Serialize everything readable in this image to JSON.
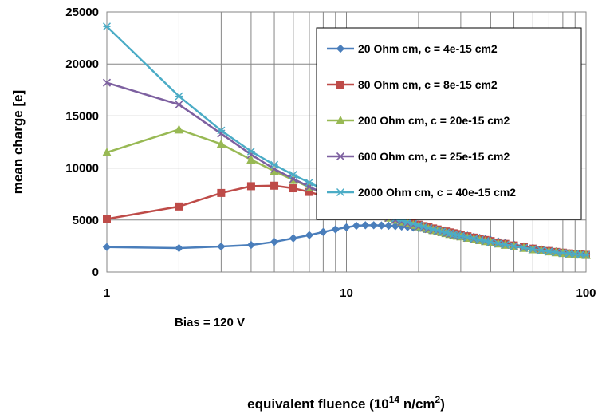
{
  "chart_data": {
    "type": "line",
    "xlabel": "equivalent fluence (10",
    "xlabel_sup": "14",
    "xlabel_unit": " n/cm",
    "xlabel_sup2": "2",
    "xlabel_end": ")",
    "ylabel": "mean charge [e]",
    "x_scale": "log",
    "xlim": [
      1,
      100
    ],
    "ylim": [
      0,
      25000
    ],
    "x_ticks": [
      "1",
      "10",
      "100"
    ],
    "y_ticks": [
      "0",
      "5000",
      "10000",
      "15000",
      "20000",
      "25000"
    ],
    "grid": true,
    "legend_position": "top-right",
    "annotation": "Bias = 120 V",
    "x": [
      1,
      2,
      3,
      4,
      5,
      6,
      7,
      8,
      9,
      10,
      11,
      12,
      13,
      14,
      15,
      16,
      17,
      18,
      19,
      20,
      21,
      22,
      23,
      24,
      25,
      26,
      27,
      28,
      29,
      30,
      32,
      34,
      36,
      38,
      40,
      43,
      46,
      50,
      55,
      60,
      65,
      70,
      75,
      80,
      85,
      90,
      95,
      100
    ],
    "series": [
      {
        "name": "20 Ohm cm, c = 4e-15 cm2",
        "color": "#4a7ebb",
        "marker": "diamond",
        "values": [
          2400,
          2300,
          2450,
          2600,
          2900,
          3250,
          3550,
          3850,
          4100,
          4300,
          4450,
          4500,
          4500,
          4480,
          4450,
          4420,
          4380,
          4330,
          4280,
          4220,
          4160,
          4100,
          4040,
          3980,
          3920,
          3860,
          3800,
          3740,
          3680,
          3620,
          3500,
          3390,
          3280,
          3180,
          3080,
          2940,
          2810,
          2650,
          2470,
          2320,
          2190,
          2080,
          1980,
          1900,
          1830,
          1770,
          1720,
          1680
        ]
      },
      {
        "name": "80 Ohm cm, c = 8e-15 cm2",
        "color": "#be4b48",
        "marker": "square",
        "values": [
          5100,
          6300,
          7600,
          8250,
          8300,
          8050,
          7700,
          7300,
          6950,
          6600,
          6300,
          6050,
          5800,
          5570,
          5360,
          5170,
          5000,
          4840,
          4690,
          4550,
          4420,
          4300,
          4190,
          4090,
          3990,
          3900,
          3810,
          3730,
          3650,
          3580,
          3440,
          3310,
          3190,
          3080,
          2980,
          2840,
          2710,
          2560,
          2390,
          2250,
          2130,
          2020,
          1930,
          1860,
          1790,
          1740,
          1690,
          1650
        ]
      },
      {
        "name": "200 Ohm cm, c = 20e-15 cm2",
        "color": "#98b954",
        "marker": "triangle",
        "values": [
          11500,
          13700,
          12300,
          10800,
          9700,
          8850,
          8150,
          7550,
          7050,
          6650,
          6290,
          5980,
          5700,
          5450,
          5230,
          5030,
          4850,
          4690,
          4540,
          4400,
          4270,
          4150,
          4040,
          3940,
          3840,
          3750,
          3660,
          3580,
          3500,
          3430,
          3300,
          3180,
          3070,
          2970,
          2870,
          2740,
          2620,
          2480,
          2320,
          2190,
          2080,
          1980,
          1900,
          1830,
          1770,
          1720,
          1680,
          1640
        ]
      },
      {
        "name": "600 Ohm cm, c = 25e-15 cm2",
        "color": "#7d60a0",
        "marker": "x",
        "values": [
          18200,
          16100,
          13300,
          11300,
          9900,
          8950,
          8200,
          7580,
          7070,
          6650,
          6280,
          5960,
          5680,
          5430,
          5210,
          5010,
          4830,
          4670,
          4520,
          4380,
          4250,
          4130,
          4020,
          3920,
          3820,
          3730,
          3650,
          3570,
          3490,
          3420,
          3290,
          3170,
          3060,
          2960,
          2860,
          2730,
          2610,
          2470,
          2310,
          2180,
          2070,
          1970,
          1890,
          1820,
          1760,
          1710,
          1670,
          1630
        ]
      },
      {
        "name": "2000 Ohm cm, c = 40e-15 cm2",
        "color": "#4bacc6",
        "marker": "star",
        "values": [
          23600,
          16900,
          13600,
          11600,
          10300,
          9350,
          8600,
          7950,
          7400,
          6950,
          6550,
          6200,
          5900,
          5630,
          5390,
          5170,
          4970,
          4800,
          4640,
          4490,
          4350,
          4220,
          4100,
          3990,
          3890,
          3800,
          3710,
          3620,
          3540,
          3470,
          3330,
          3210,
          3090,
          2990,
          2890,
          2750,
          2630,
          2490,
          2330,
          2200,
          2080,
          1980,
          1900,
          1830,
          1770,
          1720,
          1680,
          1640
        ]
      }
    ]
  }
}
